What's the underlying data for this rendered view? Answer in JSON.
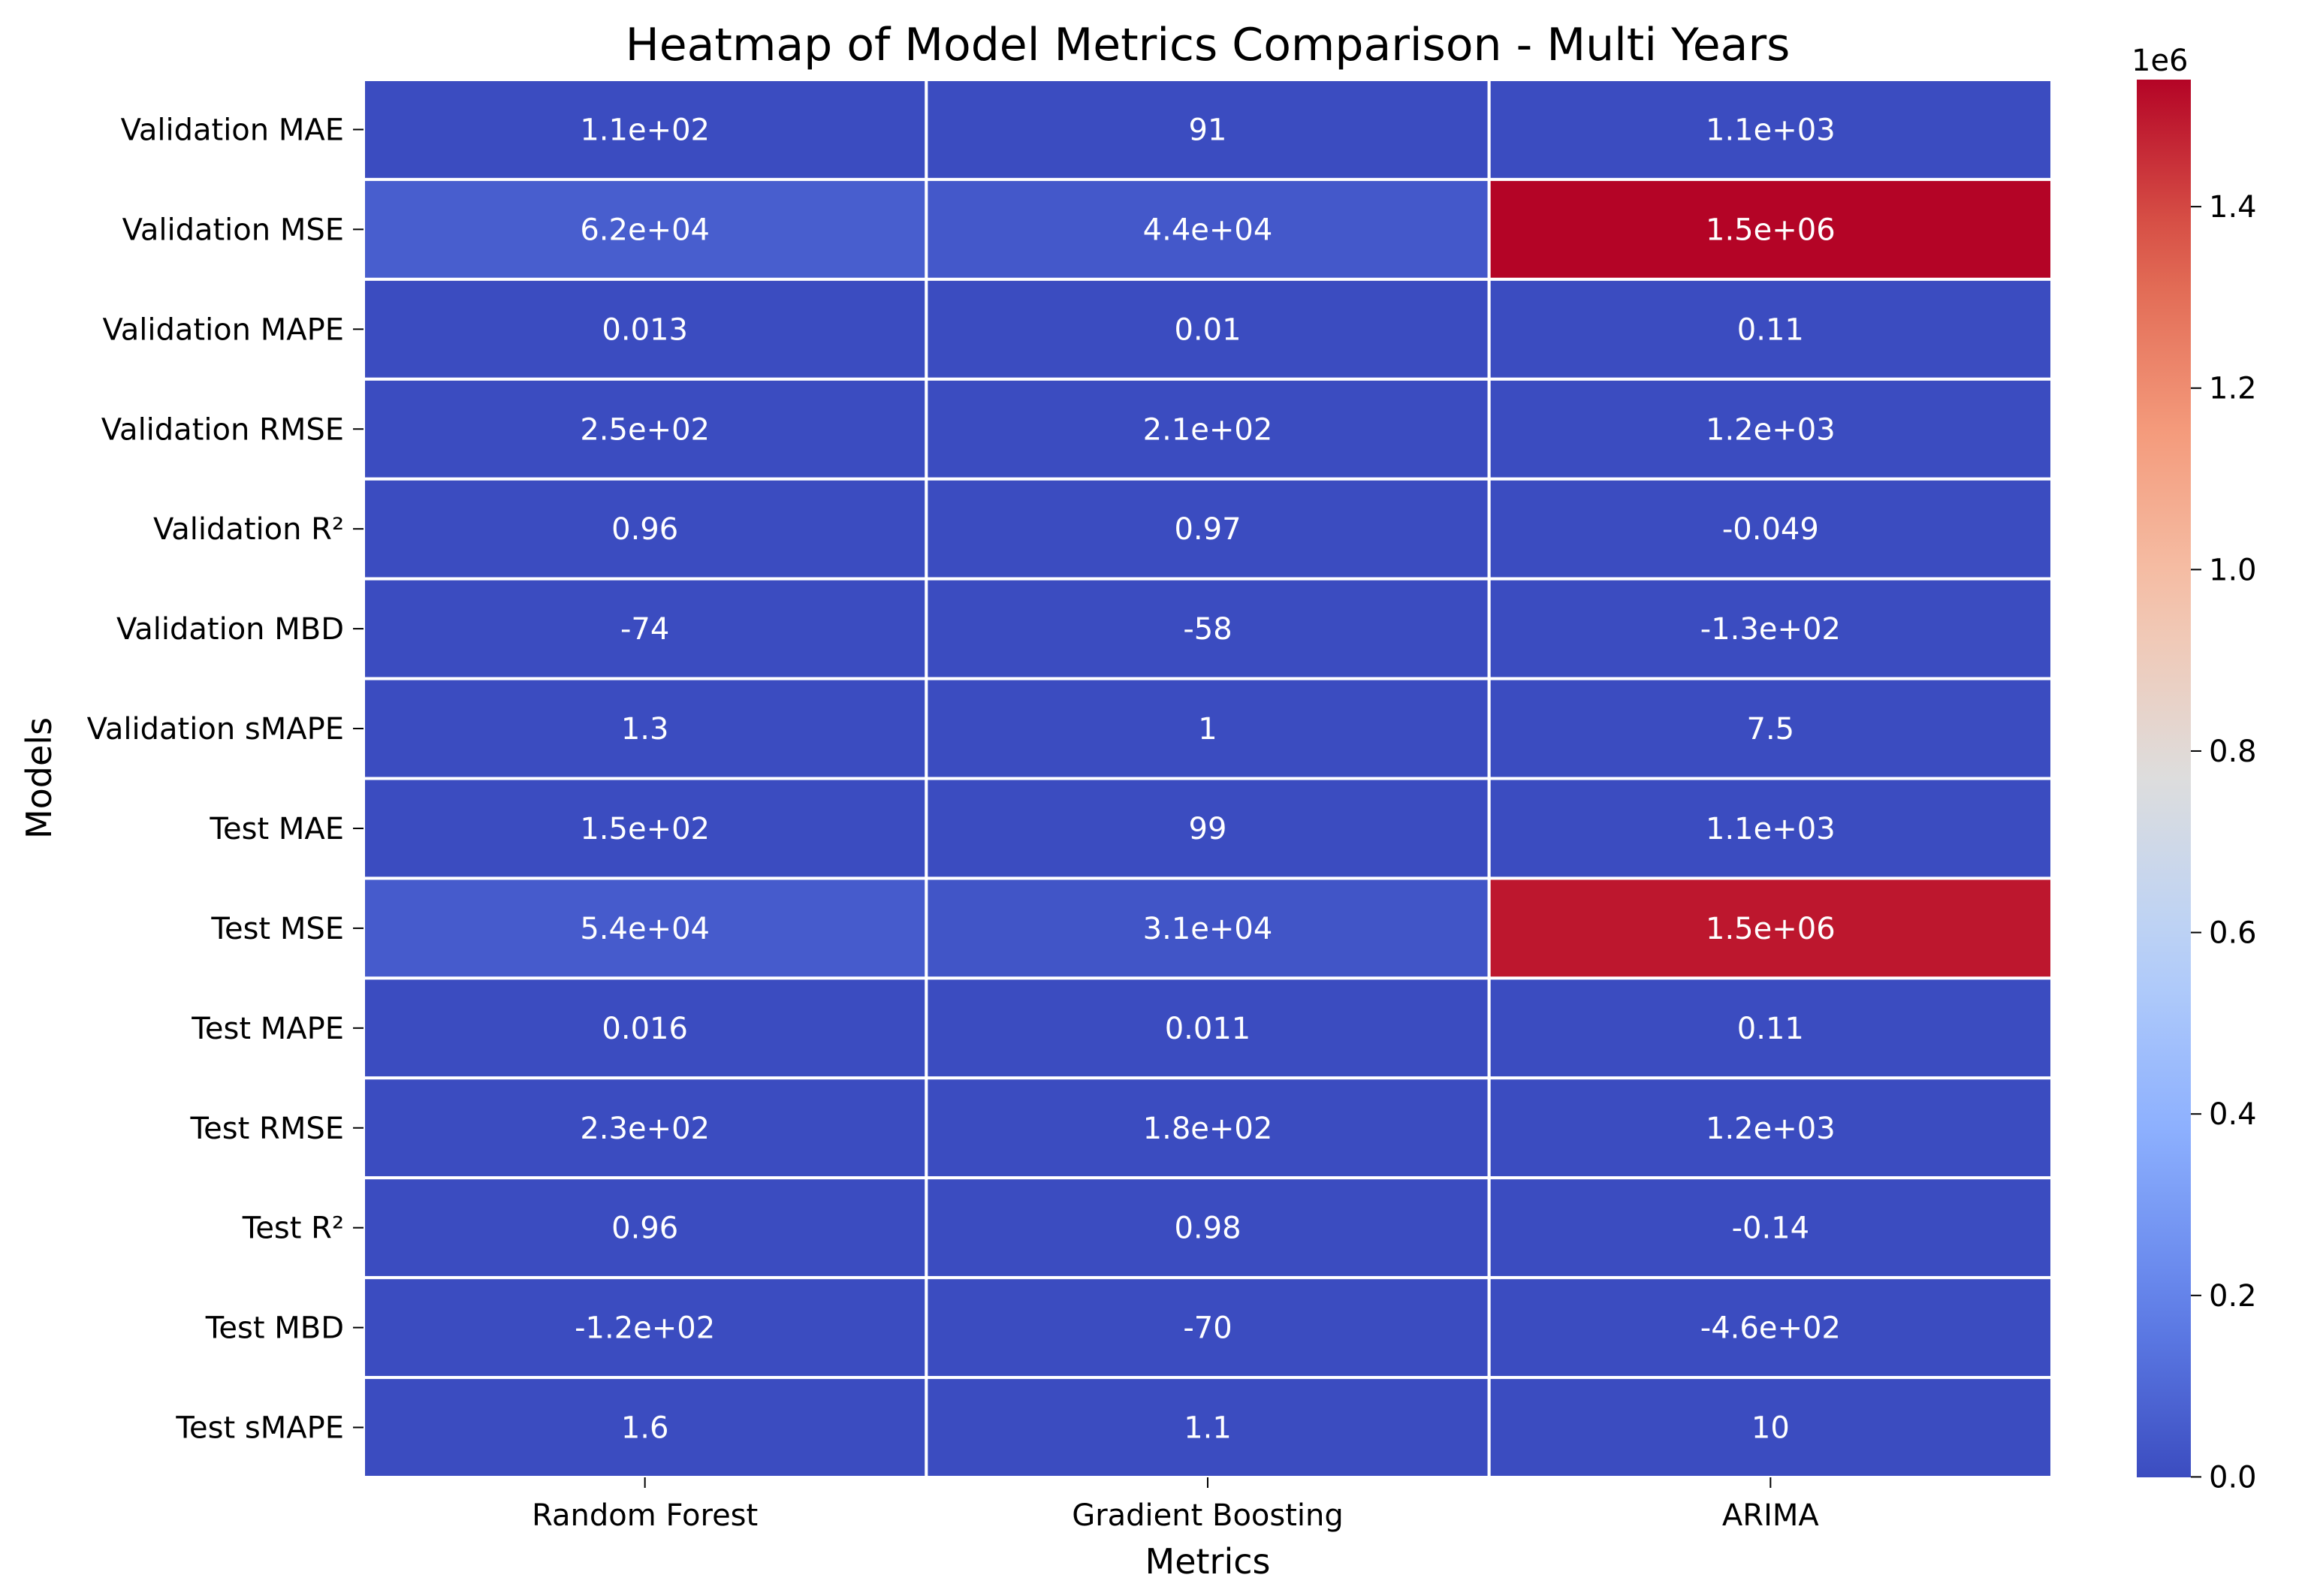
{
  "chart_data": {
    "type": "heatmap",
    "title": "Heatmap of Model Metrics Comparison - Multi Years",
    "xlabel": "Metrics",
    "ylabel": "Models",
    "columns": [
      "Random Forest",
      "Gradient Boosting",
      "ARIMA"
    ],
    "rows": [
      "Validation MAE",
      "Validation MSE",
      "Validation MAPE",
      "Validation RMSE",
      "Validation R²",
      "Validation MBD",
      "Validation sMAPE",
      "Test MAE",
      "Test MSE",
      "Test MAPE",
      "Test RMSE",
      "Test R²",
      "Test MBD",
      "Test sMAPE"
    ],
    "values": [
      [
        110,
        91,
        1100
      ],
      [
        62000,
        44000,
        1540000
      ],
      [
        0.013,
        0.01,
        0.11
      ],
      [
        250,
        210,
        1200
      ],
      [
        0.96,
        0.97,
        -0.049
      ],
      [
        -74,
        -58,
        -130
      ],
      [
        1.3,
        1,
        7.5
      ],
      [
        150,
        99,
        1100
      ],
      [
        54000,
        31000,
        1500000
      ],
      [
        0.016,
        0.011,
        0.11
      ],
      [
        230,
        180,
        1200
      ],
      [
        0.96,
        0.98,
        -0.14
      ],
      [
        -120,
        -70,
        -460
      ],
      [
        1.6,
        1.1,
        10
      ]
    ],
    "annotations": [
      [
        "1.1e+02",
        "91",
        "1.1e+03"
      ],
      [
        "6.2e+04",
        "4.4e+04",
        "1.5e+06"
      ],
      [
        "0.013",
        "0.01",
        "0.11"
      ],
      [
        "2.5e+02",
        "2.1e+02",
        "1.2e+03"
      ],
      [
        "0.96",
        "0.97",
        "-0.049"
      ],
      [
        "-74",
        "-58",
        "-1.3e+02"
      ],
      [
        "1.3",
        "1",
        "7.5"
      ],
      [
        "1.5e+02",
        "99",
        "1.1e+03"
      ],
      [
        "5.4e+04",
        "3.1e+04",
        "1.5e+06"
      ],
      [
        "0.016",
        "0.011",
        "0.11"
      ],
      [
        "2.3e+02",
        "1.8e+02",
        "1.2e+03"
      ],
      [
        "0.96",
        "0.98",
        "-0.14"
      ],
      [
        "-1.2e+02",
        "-70",
        "-4.6e+02"
      ],
      [
        "1.6",
        "1.1",
        "10"
      ]
    ],
    "colormap": "coolwarm",
    "colorbar": {
      "min": -470,
      "max": 1540000,
      "ticks": [
        0,
        200000,
        400000,
        600000,
        800000,
        1000000,
        1200000,
        1400000
      ],
      "tick_labels": [
        "0.0",
        "0.2",
        "0.4",
        "0.6",
        "0.8",
        "1.0",
        "1.2",
        "1.4"
      ],
      "scale_label": "1e6"
    },
    "colors": {
      "low": "#3b4cc0",
      "high": "#b40426",
      "cell_border": "#ffffff"
    }
  }
}
